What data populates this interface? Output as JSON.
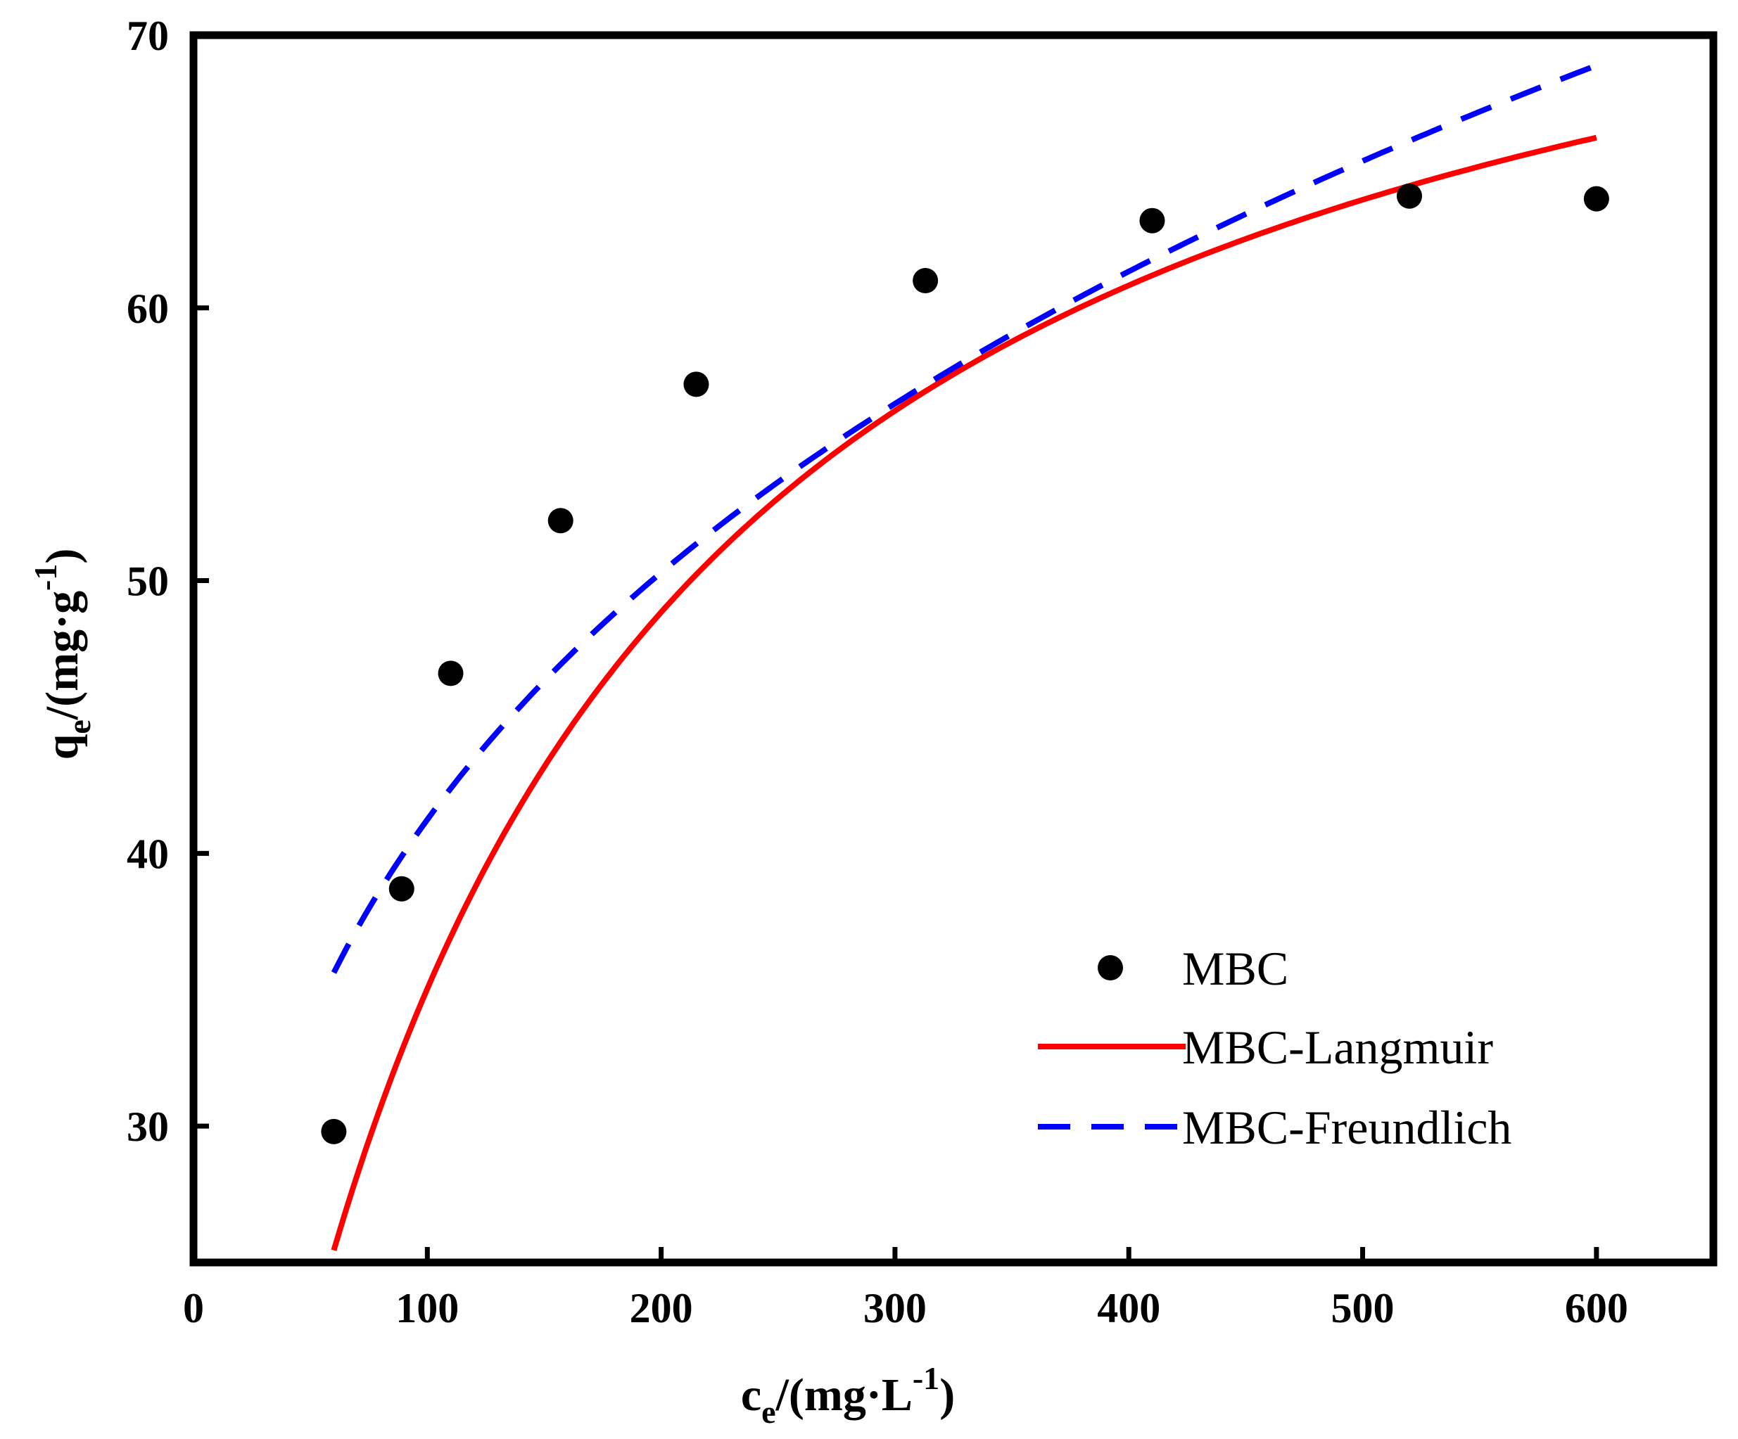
{
  "chart_data": {
    "type": "scatter",
    "xlabel": {
      "main": "c",
      "sub": "e",
      "mid": "/(mg·L",
      "sup": "-1",
      "end": ")"
    },
    "ylabel": {
      "main": "q",
      "sub": "e",
      "mid": "/(mg·g",
      "sup": "-1",
      "end": ")"
    },
    "xlim": [
      0,
      650
    ],
    "ylim": [
      25,
      70
    ],
    "xticks": [
      0,
      100,
      200,
      300,
      400,
      500,
      600
    ],
    "yticks": [
      30,
      40,
      50,
      60,
      70
    ],
    "grid": false,
    "legend_position": "bottom-right",
    "series": [
      {
        "name": "MBC",
        "kind": "scatter",
        "color": "#000000",
        "x": [
          60,
          89,
          110,
          157,
          215,
          313,
          410,
          520,
          600
        ],
        "y": [
          29.8,
          38.7,
          46.6,
          52.2,
          57.2,
          61.0,
          63.2,
          64.1,
          64.0
        ]
      },
      {
        "name": "MBC-Langmuir",
        "kind": "line",
        "style": "solid",
        "color": "#ff0000",
        "model": {
          "qm": 80.6,
          "KL": 0.00769
        },
        "x_range": [
          60,
          600
        ]
      },
      {
        "name": "MBC-Freundlich",
        "kind": "line",
        "style": "dashed",
        "color": "#0000ff",
        "model": {
          "KF": 11.03,
          "n": 3.492
        },
        "x_range": [
          60,
          600
        ]
      }
    ]
  }
}
